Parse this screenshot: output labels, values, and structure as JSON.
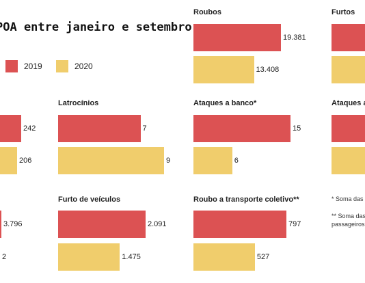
{
  "title": "POA entre janeiro e setembro",
  "colors": {
    "y2019": "#dc5253",
    "y2020": "#f0cd6c"
  },
  "legend": [
    {
      "label": "2019",
      "color": "#dc5253"
    },
    {
      "label": "2020",
      "color": "#f0cd6c"
    }
  ],
  "chart_data": [
    {
      "type": "bar",
      "title": "Roubos",
      "categories": [
        "2019",
        "2020"
      ],
      "values": [
        19381,
        13408
      ],
      "labels": [
        "19.381",
        "13.408"
      ]
    },
    {
      "type": "bar",
      "title": "Furtos",
      "categories": [
        "2019",
        "2020"
      ],
      "values": [
        null,
        null
      ],
      "labels": [
        "",
        ""
      ]
    },
    {
      "type": "bar",
      "title": "",
      "categories": [
        "2019",
        "2020"
      ],
      "values": [
        242,
        206
      ],
      "labels": [
        "242",
        "206"
      ]
    },
    {
      "type": "bar",
      "title": "Latrocínios",
      "categories": [
        "2019",
        "2020"
      ],
      "values": [
        7,
        9
      ],
      "labels": [
        "7",
        "9"
      ]
    },
    {
      "type": "bar",
      "title": "Ataques a banco*",
      "categories": [
        "2019",
        "2020"
      ],
      "values": [
        15,
        6
      ],
      "labels": [
        "15",
        "6"
      ]
    },
    {
      "type": "bar",
      "title": "Ataques a",
      "categories": [
        "2019",
        "2020"
      ],
      "values": [
        null,
        null
      ],
      "labels": [
        "",
        ""
      ]
    },
    {
      "type": "bar",
      "title": "",
      "categories": [
        "2019",
        "2020"
      ],
      "values": [
        3796,
        null
      ],
      "labels": [
        "3.796",
        "2"
      ]
    },
    {
      "type": "bar",
      "title": "Furto de veículos",
      "categories": [
        "2019",
        "2020"
      ],
      "values": [
        2091,
        1475
      ],
      "labels": [
        "2.091",
        "1.475"
      ]
    },
    {
      "type": "bar",
      "title": "Roubo a transporte coletivo**",
      "categories": [
        "2019",
        "2020"
      ],
      "values": [
        797,
        527
      ],
      "labels": [
        "797",
        "527"
      ]
    }
  ],
  "notes": [
    "* Soma das c",
    "** Soma das",
    "passageiros"
  ]
}
